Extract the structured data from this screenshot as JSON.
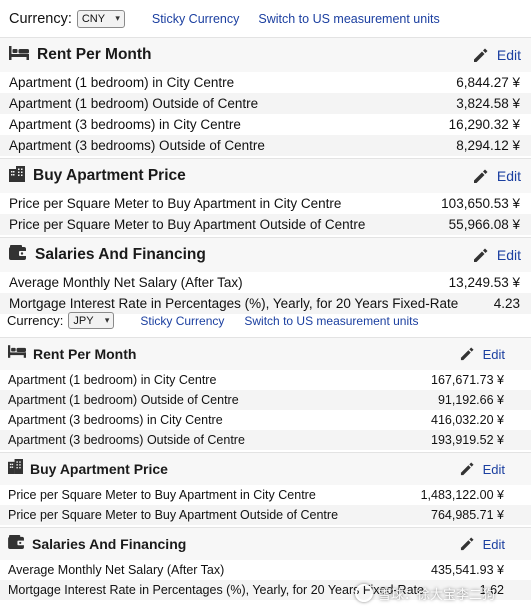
{
  "watermark": "雪球：徐大宝李二狗",
  "blocks": [
    {
      "currency_label": "Currency:",
      "currency_value": "CNY",
      "sticky_link": "Sticky Currency",
      "us_units_link": "Switch to US measurement units",
      "sections": [
        {
          "icon": "bed-icon",
          "title": "Rent Per Month",
          "edit": "Edit",
          "rows": [
            {
              "label": "Apartment (1 bedroom) in City Centre",
              "value": "6,844.27 ¥"
            },
            {
              "label": "Apartment (1 bedroom) Outside of Centre",
              "value": "3,824.58 ¥"
            },
            {
              "label": "Apartment (3 bedrooms) in City Centre",
              "value": "16,290.32 ¥"
            },
            {
              "label": "Apartment (3 bedrooms) Outside of Centre",
              "value": "8,294.12 ¥"
            }
          ]
        },
        {
          "icon": "building-icon",
          "title": "Buy Apartment Price",
          "edit": "Edit",
          "rows": [
            {
              "label": "Price per Square Meter to Buy Apartment in City Centre",
              "value": "103,650.53 ¥"
            },
            {
              "label": "Price per Square Meter to Buy Apartment Outside of Centre",
              "value": "55,966.08 ¥"
            }
          ]
        },
        {
          "icon": "wallet-icon",
          "title": "Salaries And Financing",
          "edit": "Edit",
          "rows": [
            {
              "label": "Average Monthly Net Salary (After Tax)",
              "value": "13,249.53 ¥"
            },
            {
              "label": "Mortgage Interest Rate in Percentages (%), Yearly, for 20 Years Fixed-Rate",
              "value": "4.23"
            }
          ]
        }
      ]
    },
    {
      "currency_label": "Currency:",
      "currency_value": "JPY",
      "sticky_link": "Sticky Currency",
      "us_units_link": "Switch to US measurement units",
      "sections": [
        {
          "icon": "bed-icon",
          "title": "Rent Per Month",
          "edit": "Edit",
          "rows": [
            {
              "label": "Apartment (1 bedroom) in City Centre",
              "value": "167,671.73 ¥"
            },
            {
              "label": "Apartment (1 bedroom) Outside of Centre",
              "value": "91,192.66 ¥"
            },
            {
              "label": "Apartment (3 bedrooms) in City Centre",
              "value": "416,032.20 ¥"
            },
            {
              "label": "Apartment (3 bedrooms) Outside of Centre",
              "value": "193,919.52 ¥"
            }
          ]
        },
        {
          "icon": "building-icon",
          "title": "Buy Apartment Price",
          "edit": "Edit",
          "rows": [
            {
              "label": "Price per Square Meter to Buy Apartment in City Centre",
              "value": "1,483,122.00 ¥"
            },
            {
              "label": "Price per Square Meter to Buy Apartment Outside of Centre",
              "value": "764,985.71 ¥"
            }
          ]
        },
        {
          "icon": "wallet-icon",
          "title": "Salaries And Financing",
          "edit": "Edit",
          "rows": [
            {
              "label": "Average Monthly Net Salary (After Tax)",
              "value": "435,541.93 ¥"
            },
            {
              "label": "Mortgage Interest Rate in Percentages (%), Yearly, for 20 Years Fixed-Rate",
              "value": "1.62"
            }
          ]
        }
      ]
    }
  ]
}
